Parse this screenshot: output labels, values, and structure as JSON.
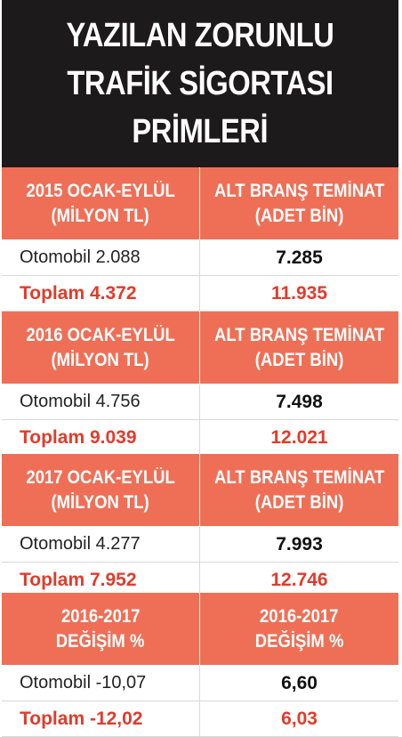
{
  "title": {
    "line1": "YAZILAN ZORUNLU",
    "line2": "TRAFİK SİGORTASI",
    "line3": "PRİMLERİ"
  },
  "sections": [
    {
      "left_header": [
        "2015 OCAK-EYLÜL",
        "(MİLYON TL)"
      ],
      "right_header": [
        "ALT BRANŞ TEMİNAT",
        "(ADET BİN)"
      ],
      "otomobil_left": "Otomobil 2.088",
      "otomobil_right": "7.285",
      "toplam_left": "Toplam 4.372",
      "toplam_right": "11.935"
    },
    {
      "left_header": [
        "2016 OCAK-EYLÜL",
        "(MİLYON TL)"
      ],
      "right_header": [
        "ALT BRANŞ TEMİNAT",
        "(ADET BİN)"
      ],
      "otomobil_left": "Otomobil 4.756",
      "otomobil_right": "7.498",
      "toplam_left": "Toplam 9.039",
      "toplam_right": "12.021"
    },
    {
      "left_header": [
        "2017 OCAK-EYLÜL",
        "(MİLYON TL)"
      ],
      "right_header": [
        "ALT BRANŞ TEMİNAT",
        "(ADET BİN)"
      ],
      "otomobil_left": "Otomobil 4.277",
      "otomobil_right": "7.993",
      "toplam_left": "Toplam 7.952",
      "toplam_right": "12.746"
    },
    {
      "left_header": [
        "2016-2017",
        "DEĞİŞİM %"
      ],
      "right_header": [
        "2016-2017",
        "DEĞİŞİM %"
      ],
      "otomobil_left": "Otomobil -10,07",
      "otomobil_right": "6,60",
      "toplam_left": "Toplam -12,02",
      "toplam_right": "6,03"
    }
  ],
  "colors": {
    "title_bg": "#1c1a1a",
    "header_bg": "#ef6f56",
    "total_text": "#e23b2a"
  }
}
